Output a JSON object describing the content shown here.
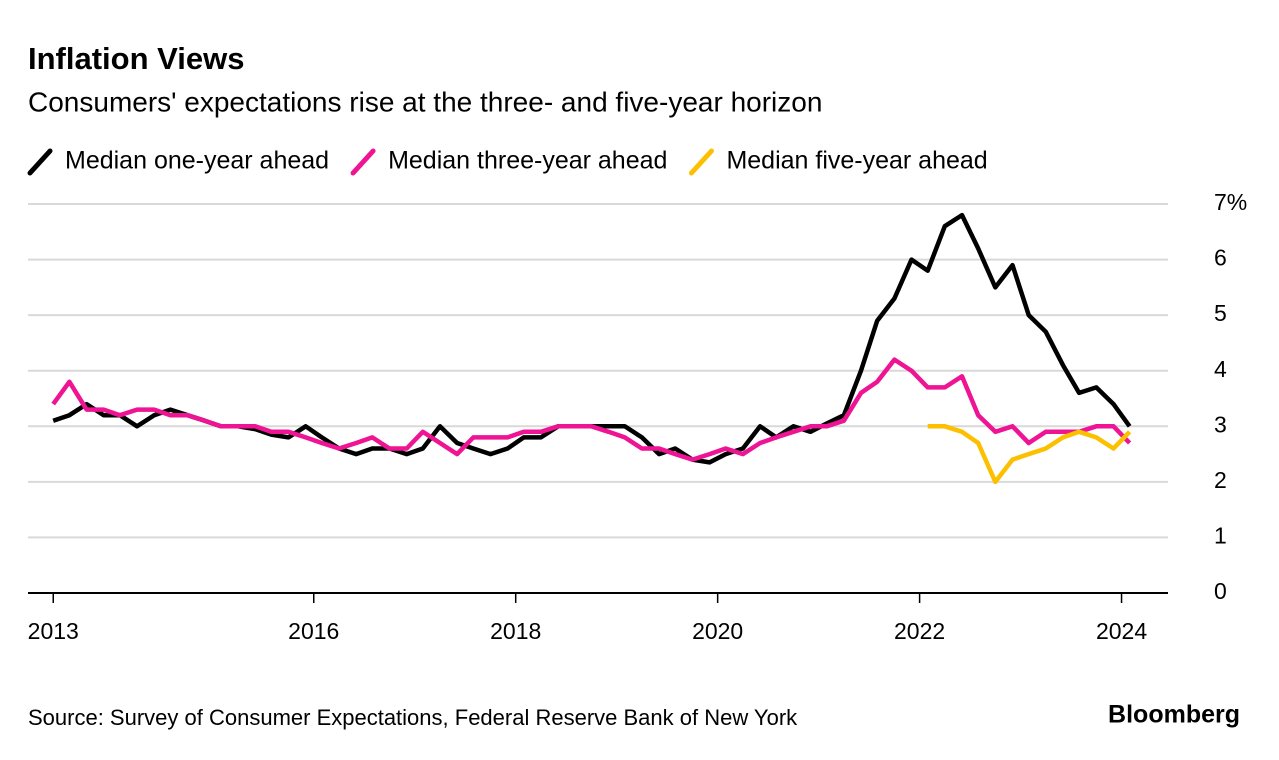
{
  "chart_data": {
    "type": "line",
    "title": "Inflation Views",
    "subtitle": "Consumers' expectations rise at the three- and five-year horizon",
    "source": "Source: Survey of Consumer Expectations, Federal Reserve Bank of New York",
    "brand": "Bloomberg",
    "x": [
      2013.42,
      2013.58,
      2013.75,
      2013.92,
      2014.08,
      2014.25,
      2014.42,
      2014.58,
      2014.75,
      2014.92,
      2015.08,
      2015.25,
      2015.42,
      2015.58,
      2015.75,
      2015.92,
      2016.08,
      2016.25,
      2016.42,
      2016.58,
      2016.75,
      2016.92,
      2017.08,
      2017.25,
      2017.42,
      2017.58,
      2017.75,
      2017.92,
      2018.08,
      2018.25,
      2018.42,
      2018.58,
      2018.75,
      2018.92,
      2019.08,
      2019.25,
      2019.42,
      2019.58,
      2019.75,
      2019.92,
      2020.08,
      2020.25,
      2020.42,
      2020.58,
      2020.75,
      2020.92,
      2021.08,
      2021.25,
      2021.42,
      2021.58,
      2021.75,
      2021.92,
      2022.08,
      2022.25,
      2022.42,
      2022.58,
      2022.75,
      2022.92,
      2023.08,
      2023.25,
      2023.42,
      2023.58,
      2023.75,
      2023.92,
      2024.08
    ],
    "series": [
      {
        "name": "Median one-year ahead",
        "color": "#000000",
        "values": [
          3.1,
          3.2,
          3.4,
          3.2,
          3.2,
          3.0,
          3.2,
          3.3,
          3.2,
          3.1,
          3.0,
          3.0,
          2.95,
          2.85,
          2.8,
          3.0,
          2.8,
          2.6,
          2.5,
          2.6,
          2.6,
          2.5,
          2.6,
          3.0,
          2.7,
          2.6,
          2.5,
          2.6,
          2.8,
          2.8,
          3.0,
          3.0,
          3.0,
          3.0,
          3.0,
          2.8,
          2.5,
          2.6,
          2.4,
          2.35,
          2.5,
          2.6,
          3.0,
          2.8,
          3.0,
          2.9,
          3.05,
          3.2,
          4.0,
          4.9,
          5.3,
          6.0,
          5.8,
          6.6,
          6.8,
          6.2,
          5.5,
          5.9,
          5.0,
          4.7,
          4.1,
          3.6,
          3.7,
          3.4,
          3.0
        ]
      },
      {
        "name": "Median three-year ahead",
        "color": "#ee1493",
        "values": [
          3.4,
          3.8,
          3.3,
          3.3,
          3.2,
          3.3,
          3.3,
          3.2,
          3.2,
          3.1,
          3.0,
          3.0,
          3.0,
          2.9,
          2.9,
          2.8,
          2.7,
          2.6,
          2.7,
          2.8,
          2.6,
          2.6,
          2.9,
          2.7,
          2.5,
          2.8,
          2.8,
          2.8,
          2.9,
          2.9,
          3.0,
          3.0,
          3.0,
          2.9,
          2.8,
          2.6,
          2.6,
          2.5,
          2.4,
          2.5,
          2.6,
          2.5,
          2.7,
          2.8,
          2.9,
          3.0,
          3.0,
          3.1,
          3.6,
          3.8,
          4.2,
          4.0,
          3.7,
          3.7,
          3.9,
          3.2,
          2.9,
          3.0,
          2.7,
          2.9,
          2.9,
          2.9,
          3.0,
          3.0,
          2.7
        ]
      },
      {
        "name": "Median five-year ahead",
        "color": "#fcc000",
        "values": [
          null,
          null,
          null,
          null,
          null,
          null,
          null,
          null,
          null,
          null,
          null,
          null,
          null,
          null,
          null,
          null,
          null,
          null,
          null,
          null,
          null,
          null,
          null,
          null,
          null,
          null,
          null,
          null,
          null,
          null,
          null,
          null,
          null,
          null,
          null,
          null,
          null,
          null,
          null,
          null,
          null,
          null,
          null,
          null,
          null,
          null,
          null,
          null,
          null,
          null,
          null,
          null,
          3.0,
          3.0,
          2.9,
          2.7,
          2.0,
          2.4,
          2.5,
          2.6,
          2.8,
          2.9,
          2.8,
          2.6,
          2.9
        ]
      }
    ],
    "xlim": [
      2013.17,
      2024.46
    ],
    "xticks": [
      {
        "value": 2013.42,
        "label": "2013"
      },
      2016,
      2018,
      2020,
      2022,
      2024
    ],
    "ylim": [
      0,
      7
    ],
    "yticks": [
      0,
      1,
      2,
      3,
      4,
      5,
      6,
      {
        "value": 7,
        "label": "7%"
      }
    ],
    "grid": true
  }
}
